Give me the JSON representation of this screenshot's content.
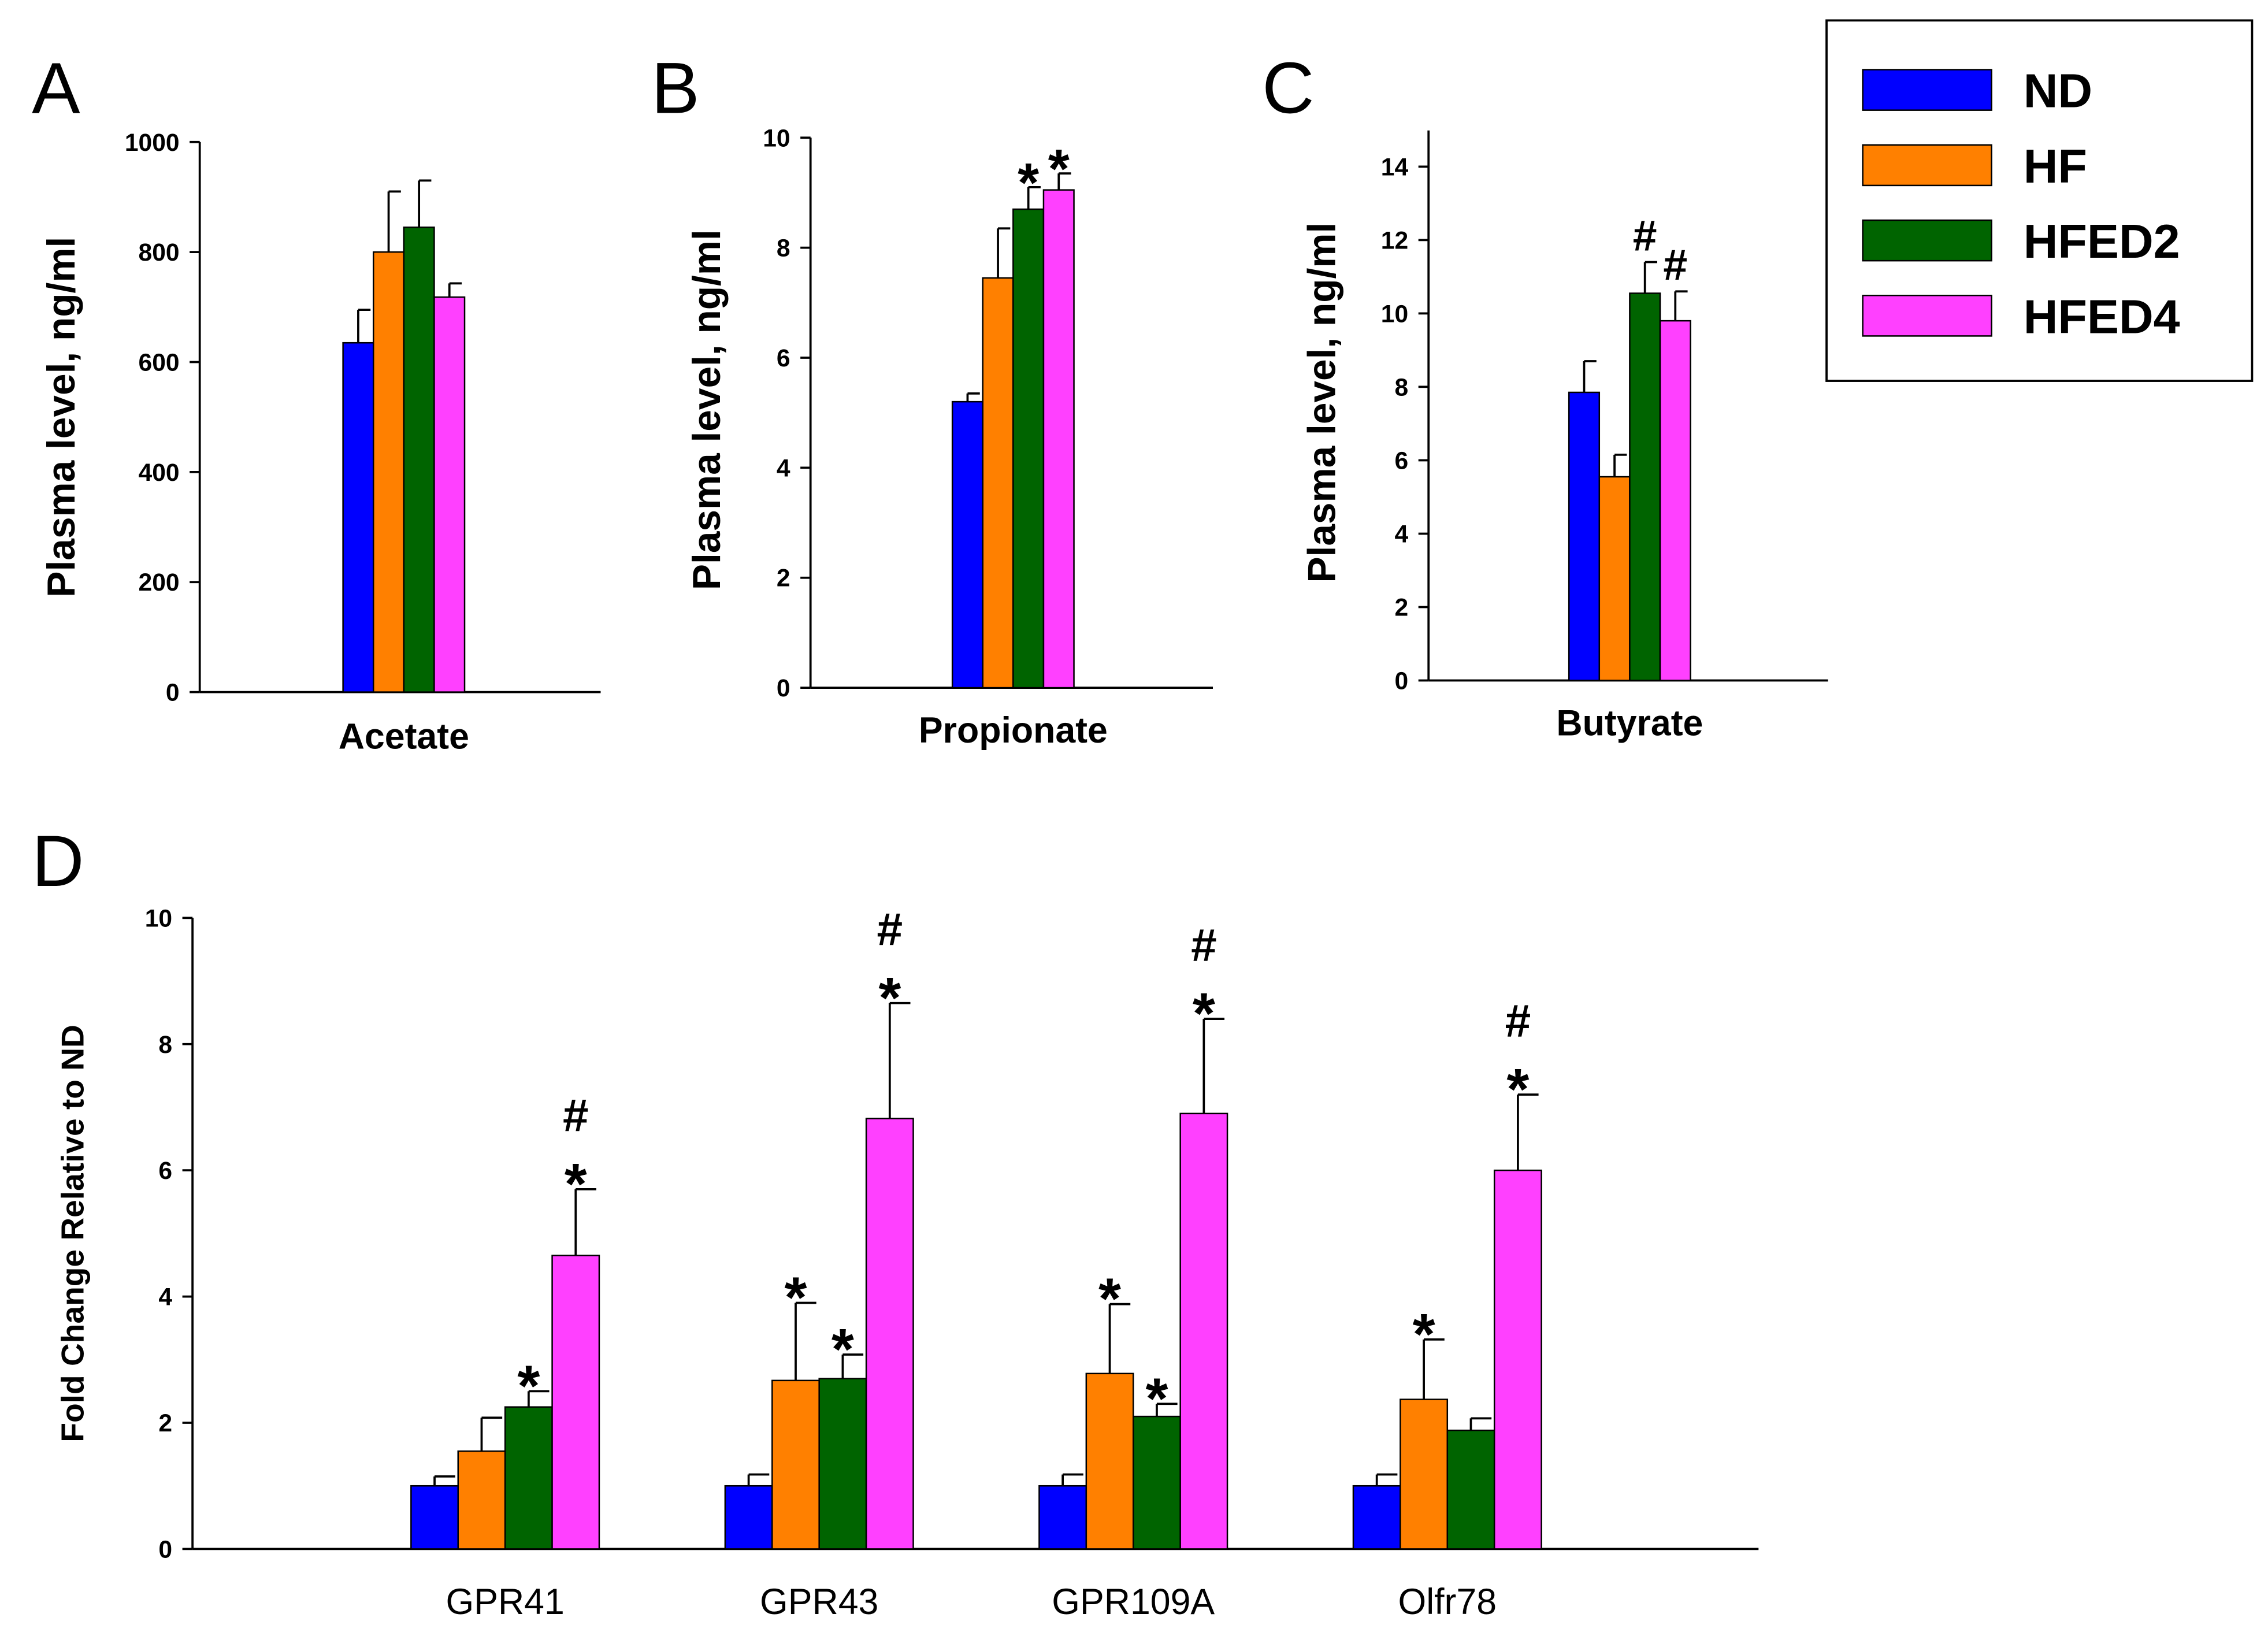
{
  "legend": {
    "position": "top-right",
    "entries": [
      {
        "name": "ND",
        "color": "#0000ff"
      },
      {
        "name": "HF",
        "color": "#ff8000"
      },
      {
        "name": "HFED2",
        "color": "#006400"
      },
      {
        "name": "HFED4",
        "color": "#ff40ff"
      }
    ]
  },
  "chart_data": [
    {
      "type": "bar",
      "panel": "A",
      "ylabel": "Plasma level, ng/ml",
      "ylim": [
        0,
        1000
      ],
      "yticks": [
        0,
        200,
        400,
        600,
        800,
        1000
      ],
      "categories": [
        "Acetate"
      ],
      "series": [
        {
          "name": "ND",
          "values": [
            635
          ],
          "errors": [
            60
          ],
          "annotations": [
            ""
          ]
        },
        {
          "name": "HF",
          "values": [
            800
          ],
          "errors": [
            110
          ],
          "annotations": [
            ""
          ]
        },
        {
          "name": "HFED2",
          "values": [
            845
          ],
          "errors": [
            85
          ],
          "annotations": [
            ""
          ]
        },
        {
          "name": "HFED4",
          "values": [
            718
          ],
          "errors": [
            25
          ],
          "annotations": [
            ""
          ]
        }
      ]
    },
    {
      "type": "bar",
      "panel": "B",
      "ylabel": "Plasma level, ng/ml",
      "ylim": [
        0,
        10
      ],
      "yticks": [
        0,
        2,
        4,
        6,
        8,
        10
      ],
      "categories": [
        "Propionate"
      ],
      "series": [
        {
          "name": "ND",
          "values": [
            5.2
          ],
          "errors": [
            0.15
          ],
          "annotations": [
            ""
          ]
        },
        {
          "name": "HF",
          "values": [
            7.45
          ],
          "errors": [
            0.9
          ],
          "annotations": [
            ""
          ]
        },
        {
          "name": "HFED2",
          "values": [
            8.7
          ],
          "errors": [
            0.4
          ],
          "annotations": [
            "*"
          ]
        },
        {
          "name": "HFED4",
          "values": [
            9.05
          ],
          "errors": [
            0.3
          ],
          "annotations": [
            "*"
          ]
        }
      ]
    },
    {
      "type": "bar",
      "panel": "C",
      "ylabel": "Plasma level, ng/ml",
      "ylim": [
        0,
        15
      ],
      "yticks": [
        0,
        2,
        4,
        6,
        8,
        10,
        12,
        14
      ],
      "categories": [
        "Butyrate"
      ],
      "series": [
        {
          "name": "ND",
          "values": [
            7.85
          ],
          "errors": [
            0.85
          ],
          "annotations": [
            ""
          ]
        },
        {
          "name": "HF",
          "values": [
            5.55
          ],
          "errors": [
            0.6
          ],
          "annotations": [
            "*"
          ]
        },
        {
          "name": "HFED2",
          "values": [
            10.55
          ],
          "errors": [
            0.85
          ],
          "annotations": [
            "#"
          ]
        },
        {
          "name": "HFED4",
          "values": [
            9.8
          ],
          "errors": [
            0.8
          ],
          "annotations": [
            "#"
          ]
        }
      ]
    },
    {
      "type": "bar",
      "panel": "D",
      "ylabel": "Fold Change Relative to ND",
      "ylim": [
        0,
        10
      ],
      "yticks": [
        0,
        2,
        4,
        6,
        8,
        10
      ],
      "categories": [
        "GPR41",
        "GPR43",
        "GPR109A",
        "Olfr78"
      ],
      "series": [
        {
          "name": "ND",
          "values": [
            1.0,
            1.0,
            1.0,
            1.0
          ],
          "errors": [
            0.15,
            0.18,
            0.18,
            0.18
          ],
          "annotations": [
            "",
            "",
            "",
            ""
          ]
        },
        {
          "name": "HF",
          "values": [
            1.55,
            2.67,
            2.78,
            2.37
          ],
          "errors": [
            0.53,
            1.23,
            1.1,
            0.95
          ],
          "annotations": [
            "",
            "*",
            "*",
            "*"
          ]
        },
        {
          "name": "HFED2",
          "values": [
            2.25,
            2.7,
            2.1,
            1.88
          ],
          "errors": [
            0.25,
            0.38,
            0.2,
            0.19
          ],
          "annotations": [
            "*",
            "*",
            "*",
            ""
          ]
        },
        {
          "name": "HFED4",
          "values": [
            4.65,
            6.82,
            6.9,
            6.0
          ],
          "errors": [
            1.05,
            1.83,
            1.5,
            1.2
          ],
          "annotations": [
            "#\n*",
            "#\n*",
            "#\n*",
            "#\n*"
          ]
        }
      ]
    }
  ]
}
